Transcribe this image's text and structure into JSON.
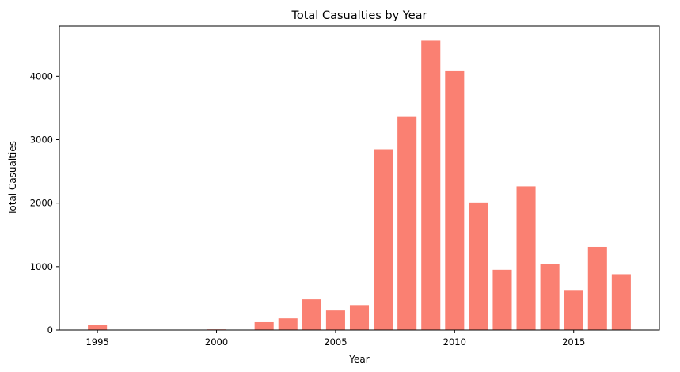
{
  "chart_data": {
    "type": "bar",
    "title": "Total Casualties by Year",
    "xlabel": "Year",
    "ylabel": "Total Casualties",
    "bar_color": "#fa8072",
    "xlim": [
      1993.4,
      2018.6
    ],
    "ylim": [
      0,
      4790
    ],
    "xticks": [
      1995,
      2000,
      2005,
      2010,
      2015
    ],
    "yticks": [
      0,
      1000,
      2000,
      3000,
      4000
    ],
    "grid": false,
    "legend": "none",
    "x": [
      1995,
      2000,
      2002,
      2003,
      2004,
      2005,
      2006,
      2007,
      2008,
      2009,
      2010,
      2011,
      2012,
      2013,
      2014,
      2015,
      2016,
      2017
    ],
    "values": [
      75,
      10,
      125,
      185,
      485,
      310,
      395,
      2850,
      3360,
      4560,
      4080,
      2010,
      950,
      2265,
      1040,
      620,
      1310,
      880
    ]
  }
}
